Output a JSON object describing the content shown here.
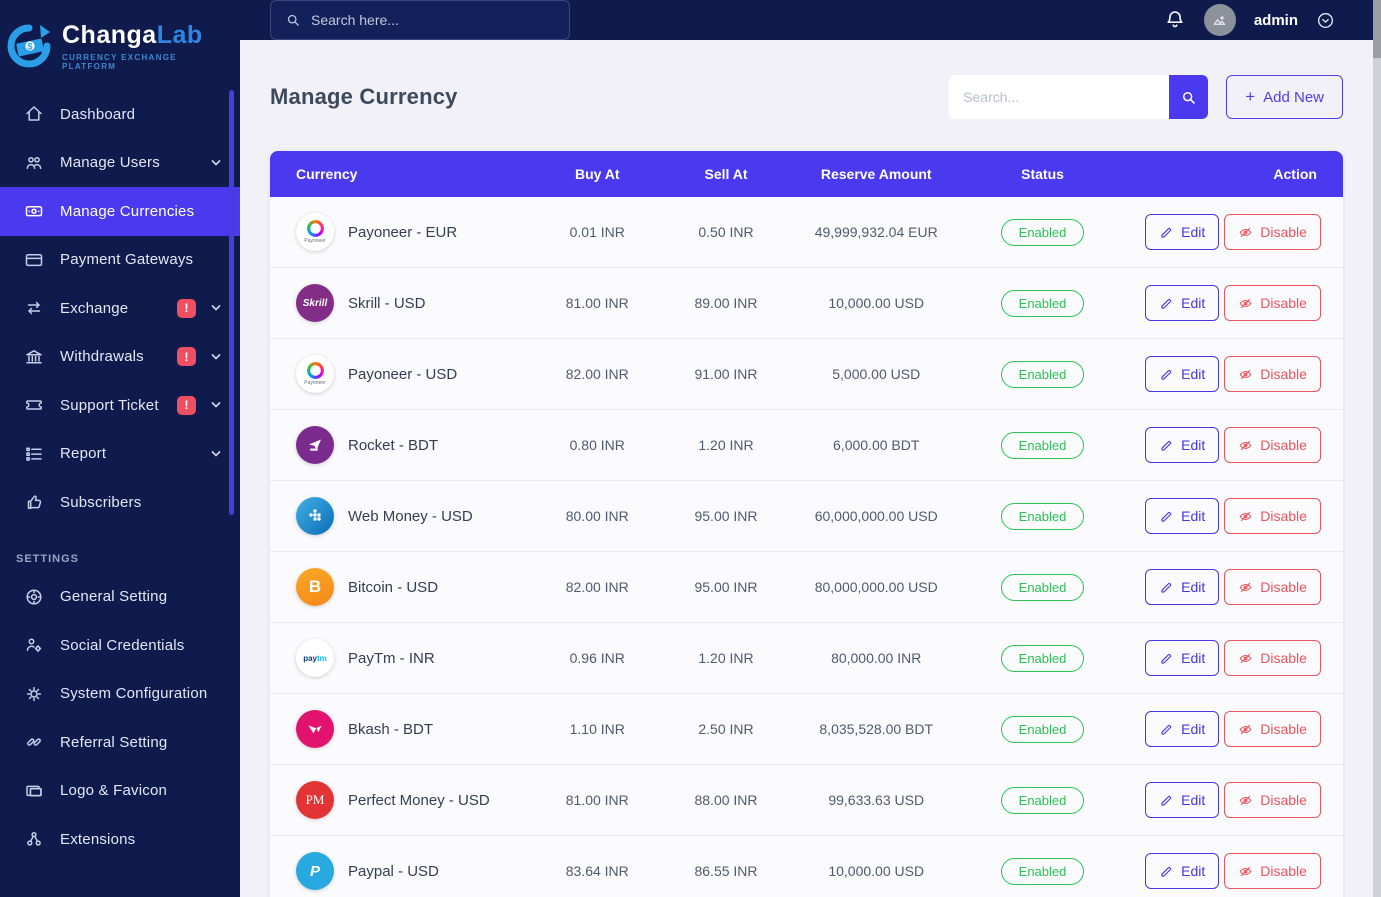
{
  "brand": {
    "name_primary": "Changa",
    "name_secondary": "Lab",
    "tagline": "CURRENCY EXCHANGE PLATFORM"
  },
  "topbar": {
    "search_placeholder": "Search here...",
    "username": "admin"
  },
  "sidebar": {
    "items": [
      {
        "label": "Dashboard",
        "icon": "home"
      },
      {
        "label": "Manage Users",
        "icon": "users",
        "chevron": true
      },
      {
        "label": "Manage Currencies",
        "icon": "banknote",
        "active": true
      },
      {
        "label": "Payment Gateways",
        "icon": "card"
      },
      {
        "label": "Exchange",
        "icon": "exchange",
        "badge": "!",
        "chevron": true
      },
      {
        "label": "Withdrawals",
        "icon": "bank",
        "badge": "!",
        "chevron": true
      },
      {
        "label": "Support Ticket",
        "icon": "ticket",
        "badge": "!",
        "chevron": true
      },
      {
        "label": "Report",
        "icon": "list",
        "chevron": true
      },
      {
        "label": "Subscribers",
        "icon": "thumbsup"
      }
    ],
    "section_label": "SETTINGS",
    "settings_items": [
      {
        "label": "General Setting",
        "icon": "disc"
      },
      {
        "label": "Social Credentials",
        "icon": "usergear"
      },
      {
        "label": "System Configuration",
        "icon": "gear"
      },
      {
        "label": "Referral Setting",
        "icon": "link"
      },
      {
        "label": "Logo & Favicon",
        "icon": "image"
      },
      {
        "label": "Extensions",
        "icon": "nodes"
      }
    ]
  },
  "page": {
    "title": "Manage Currency",
    "search_placeholder": "Search...",
    "add_new_label": "Add New",
    "add_new_plus": "+"
  },
  "table": {
    "columns": [
      "Currency",
      "Buy At",
      "Sell At",
      "Reserve Amount",
      "Status",
      "Action"
    ],
    "edit_label": "Edit",
    "disable_label": "Disable",
    "rows": [
      {
        "name": "Payoneer - EUR",
        "icon": "payoneer",
        "buy": "0.01 INR",
        "sell": "0.50 INR",
        "reserve": "49,999,932.04 EUR",
        "status": "Enabled"
      },
      {
        "name": "Skrill - USD",
        "icon": "skrill",
        "buy": "81.00 INR",
        "sell": "89.00 INR",
        "reserve": "10,000.00 USD",
        "status": "Enabled"
      },
      {
        "name": "Payoneer - USD",
        "icon": "payoneer",
        "buy": "82.00 INR",
        "sell": "91.00 INR",
        "reserve": "5,000.00 USD",
        "status": "Enabled"
      },
      {
        "name": "Rocket - BDT",
        "icon": "rocket",
        "buy": "0.80 INR",
        "sell": "1.20 INR",
        "reserve": "6,000.00 BDT",
        "status": "Enabled"
      },
      {
        "name": "Web Money - USD",
        "icon": "webmoney",
        "buy": "80.00 INR",
        "sell": "95.00 INR",
        "reserve": "60,000,000.00 USD",
        "status": "Enabled"
      },
      {
        "name": "Bitcoin - USD",
        "icon": "bitcoin",
        "buy": "82.00 INR",
        "sell": "95.00 INR",
        "reserve": "80,000,000.00 USD",
        "status": "Enabled"
      },
      {
        "name": "PayTm - INR",
        "icon": "paytm",
        "buy": "0.96 INR",
        "sell": "1.20 INR",
        "reserve": "80,000.00 INR",
        "status": "Enabled"
      },
      {
        "name": "Bkash - BDT",
        "icon": "bkash",
        "buy": "1.10 INR",
        "sell": "2.50 INR",
        "reserve": "8,035,528.00 BDT",
        "status": "Enabled"
      },
      {
        "name": "Perfect Money - USD",
        "icon": "pm",
        "buy": "81.00 INR",
        "sell": "88.00 INR",
        "reserve": "99,633.63 USD",
        "status": "Enabled"
      },
      {
        "name": "Paypal - USD",
        "icon": "paypal",
        "buy": "83.64 INR",
        "sell": "86.55 INR",
        "reserve": "10,000.00 USD",
        "status": "Enabled"
      }
    ]
  },
  "colors": {
    "navy": "#0f1b4d",
    "accent": "#4a39ef",
    "badge_red": "#ee5061",
    "status_green": "#2bc155",
    "disable_red": "#e8555e",
    "content_bg": "#f1f1f7"
  }
}
